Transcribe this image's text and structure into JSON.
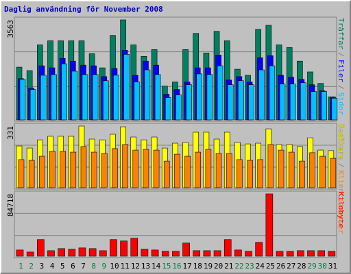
{
  "title": "Daglig användning för November 2008",
  "categories": [
    "1",
    "2",
    "3",
    "4",
    "5",
    "6",
    "7",
    "8",
    "9",
    "10",
    "11",
    "12",
    "13",
    "14",
    "15",
    "16",
    "17",
    "18",
    "19",
    "20",
    "21",
    "22",
    "23",
    "24",
    "25",
    "26",
    "27",
    "28",
    "29",
    "30",
    "31"
  ],
  "category_colors": [
    "#008040",
    "#008040",
    "#000000",
    "#000000",
    "#000000",
    "#000000",
    "#000000",
    "#008040",
    "#008040",
    "#000000",
    "#000000",
    "#000000",
    "#000000",
    "#000000",
    "#008040",
    "#008040",
    "#000000",
    "#000000",
    "#000000",
    "#000000",
    "#000000",
    "#008040",
    "#008040",
    "#000000",
    "#000000",
    "#000000",
    "#000000",
    "#000000",
    "#008040",
    "#008040",
    "#000000"
  ],
  "separator": "/",
  "chart_data": [
    {
      "type": "bar",
      "ylim": [
        0,
        3563
      ],
      "yticks": [
        3563
      ],
      "grid": true,
      "series": [
        {
          "name": "Träffar",
          "color": "#008060",
          "values": [
            1878,
            1757,
            2672,
            2817,
            2817,
            2817,
            2817,
            2359,
            1854,
            3009,
            3563,
            2672,
            2263,
            2504,
            1204,
            1348,
            2504,
            3081,
            2383,
            3154,
            2817,
            1805,
            1589,
            3226,
            3371,
            2672,
            2576,
            2094,
            1709,
            1300,
            819
          ]
        },
        {
          "name": "Filer",
          "color": "#0000ff",
          "values": [
            1469,
            1131,
            1926,
            1854,
            2191,
            2094,
            1950,
            1926,
            1541,
            1830,
            2480,
            1589,
            2094,
            1950,
            915,
            1083,
            1348,
            1854,
            1854,
            2311,
            1420,
            1541,
            1348,
            2215,
            2287,
            1589,
            1517,
            1444,
            1252,
            1035,
            819
          ]
        },
        {
          "name": "Sidor",
          "color": "#00c0ff",
          "values": [
            1444,
            1083,
            1589,
            1613,
            1998,
            1733,
            1613,
            1613,
            1396,
            1589,
            2335,
            1348,
            1781,
            1613,
            794,
            890,
            1252,
            1637,
            1613,
            1926,
            1252,
            1396,
            1252,
            1781,
            1926,
            1276,
            1276,
            1324,
            1011,
            1011,
            770
          ]
        }
      ]
    },
    {
      "type": "bar",
      "ylim": [
        0,
        331
      ],
      "yticks": [
        331
      ],
      "grid": true,
      "series": [
        {
          "name": "Besökare",
          "color": "#ffff00",
          "values": [
            224,
            213,
            257,
            276,
            276,
            276,
            331,
            261,
            257,
            287,
            327,
            272,
            257,
            272,
            213,
            239,
            243,
            298,
            298,
            261,
            298,
            243,
            235,
            239,
            316,
            232,
            232,
            221,
            268,
            202,
            199
          ]
        },
        {
          "name": "Klientadresser",
          "color": "#ff8000",
          "values": [
            151,
            147,
            169,
            195,
            195,
            191,
            221,
            191,
            184,
            210,
            232,
            202,
            206,
            202,
            143,
            180,
            169,
            191,
            206,
            184,
            184,
            151,
            147,
            151,
            232,
            202,
            191,
            143,
            188,
            169,
            158
          ]
        }
      ]
    },
    {
      "type": "bar",
      "ylim": [
        0,
        84718
      ],
      "yticks": [
        84718
      ],
      "grid": true,
      "series": [
        {
          "name": "Kilobyte",
          "color": "#ff0000",
          "values": [
            8472,
            5648,
            22591,
            7530,
            10354,
            9413,
            11295,
            10354,
            7530,
            22591,
            20709,
            24474,
            9413,
            8472,
            6589,
            6589,
            17885,
            7530,
            7530,
            7530,
            22591,
            8472,
            6589,
            18826,
            84718,
            6589,
            6589,
            7530,
            7530,
            7530,
            6589
          ]
        }
      ]
    }
  ]
}
